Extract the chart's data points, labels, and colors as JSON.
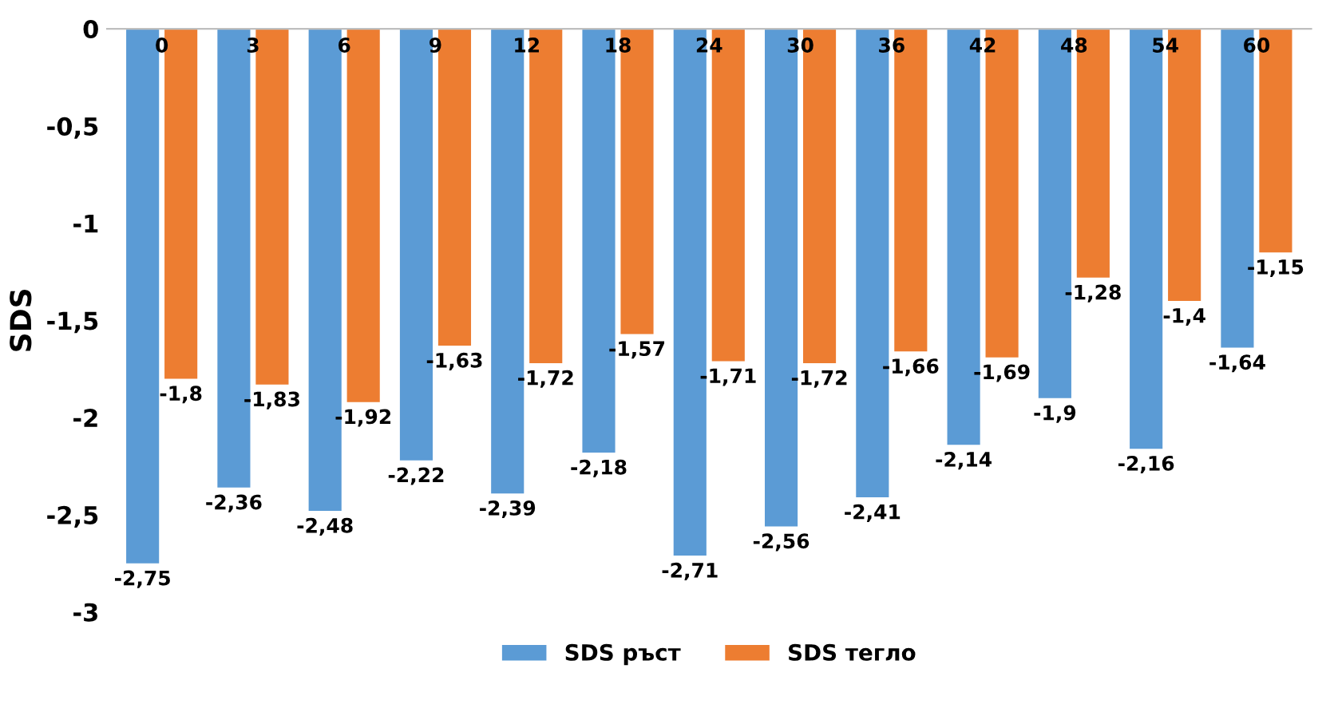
{
  "chart_data": {
    "type": "bar",
    "ylabel": "SDS",
    "categories": [
      "0",
      "3",
      "6",
      "9",
      "12",
      "18",
      "24",
      "30",
      "36",
      "42",
      "48",
      "54",
      "60"
    ],
    "series": [
      {
        "name": "SDS ръст",
        "color": "#5b9bd5",
        "values": [
          -2.75,
          -2.36,
          -2.48,
          -2.22,
          -2.39,
          -2.18,
          -2.71,
          -2.56,
          -2.41,
          -2.14,
          -1.9,
          -2.16,
          -1.64
        ],
        "value_labels": [
          "-2,75",
          "-2,36",
          "-2,48",
          "-2,22",
          "-2,39",
          "-2,18",
          "-2,71",
          "-2,56",
          "-2,41",
          "-2,14",
          "-1,9",
          "-2,16",
          "-1,64"
        ]
      },
      {
        "name": "SDS тегло",
        "color": "#ed7d31",
        "values": [
          -1.8,
          -1.83,
          -1.92,
          -1.63,
          -1.72,
          -1.57,
          -1.71,
          -1.72,
          -1.66,
          -1.69,
          -1.28,
          -1.4,
          -1.15
        ],
        "value_labels": [
          "-1,8",
          "-1,83",
          "-1,92",
          "-1,63",
          "-1,72",
          "-1,57",
          "-1,71",
          "-1,72",
          "-1,66",
          "-1,69",
          "-1,28",
          "-1,4",
          "-1,15"
        ]
      }
    ],
    "ylim": [
      -3,
      0
    ],
    "yticks": [
      {
        "value": 0,
        "label": "0"
      },
      {
        "value": -0.5,
        "label": "-0,5"
      },
      {
        "value": -1,
        "label": "-1"
      },
      {
        "value": -1.5,
        "label": "-1,5"
      },
      {
        "value": -2,
        "label": "-2"
      },
      {
        "value": -2.5,
        "label": "-2,5"
      },
      {
        "value": -3,
        "label": "-3"
      }
    ],
    "grid": false,
    "legend": "bottom"
  }
}
